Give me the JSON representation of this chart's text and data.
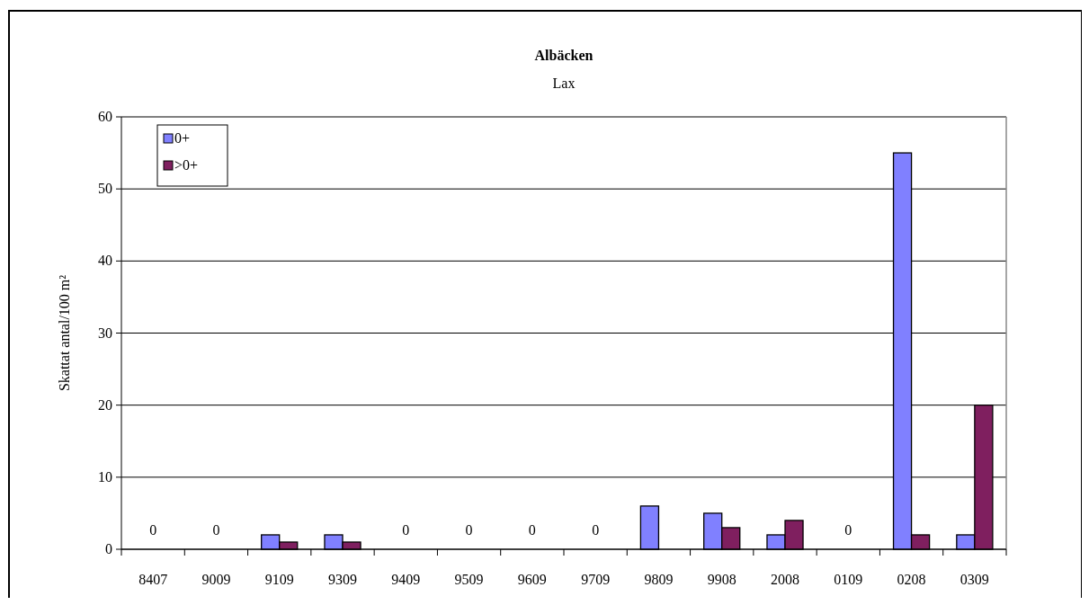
{
  "chart_data": {
    "type": "bar",
    "title": "Albäcken",
    "subtitle": "Lax",
    "ylabel": "Skattat antal/100 m²",
    "categories": [
      "8407",
      "9009",
      "9109",
      "9309",
      "9409",
      "9509",
      "9609",
      "9709",
      "9809",
      "9908",
      "2008",
      "0109",
      "0208",
      "0309"
    ],
    "series": [
      {
        "name": "0+",
        "color": "#8080ff",
        "values": [
          0,
          0,
          2,
          2,
          0,
          0,
          0,
          0,
          6,
          5,
          2,
          0,
          55,
          2
        ]
      },
      {
        "name": ">0+",
        "color": "#7f1f5f",
        "values": [
          0,
          0,
          1,
          1,
          0,
          0,
          0,
          0,
          0,
          3,
          4,
          0,
          2,
          20
        ]
      }
    ],
    "annotations": [
      {
        "text": "0",
        "x": "8407",
        "y": 0
      },
      {
        "text": "0",
        "x": "9009",
        "y": 0
      },
      {
        "text": "0",
        "x": "9409",
        "y": 0
      },
      {
        "text": "0",
        "x": "9509",
        "y": 0
      },
      {
        "text": "0",
        "x": "9609",
        "y": 0
      },
      {
        "text": "0",
        "x": "9709",
        "y": 0
      },
      {
        "text": "0",
        "x": "0109",
        "y": 0
      }
    ],
    "ylim": [
      0,
      60
    ],
    "yticks": [
      0,
      10,
      20,
      30,
      40,
      50,
      60
    ],
    "grid": "y",
    "legend": "top left"
  }
}
